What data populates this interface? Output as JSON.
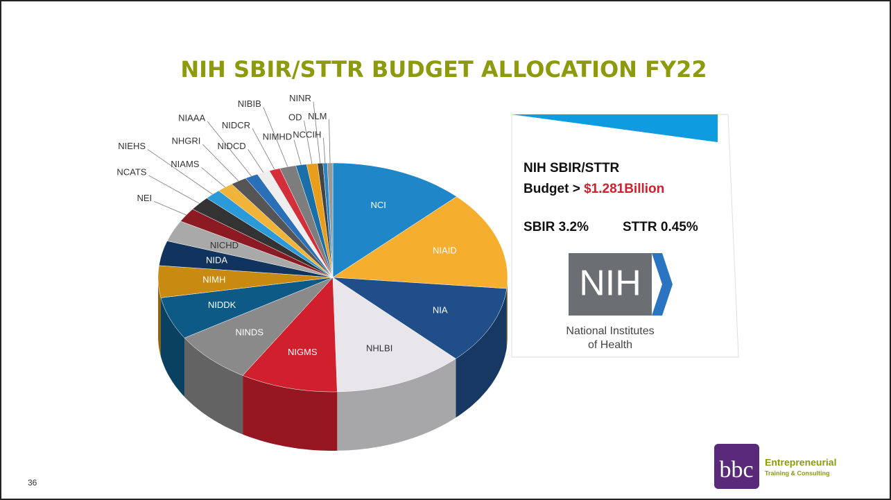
{
  "slide": {
    "title": "NIH SBIR/STTR BUDGET ALLOCATION FY22",
    "panel": {
      "line1": "NIH SBIR/STTR",
      "line2": "Budget > ",
      "amount": "$1.281Billion",
      "sbir": "SBIR 3.2%",
      "sttr": "STTR 0.45%",
      "logo": "NIH",
      "org1": "National Institutes",
      "org2": "of Health"
    },
    "page_number": "36",
    "brand": {
      "mark": "bbc",
      "name": "Entrepreneurial",
      "tagline": "Training & Consulting"
    }
  },
  "chart_data": {
    "type": "pie",
    "categories": [
      "NCI",
      "NIAID",
      "NIA",
      "NHLBI",
      "NIGMS",
      "NINDS",
      "NIDDK",
      "NIMH",
      "NIDA",
      "NICHD",
      "NEI",
      "NCATS",
      "NIEHS",
      "NIAMS",
      "NHGRI",
      "NIAAA",
      "NIDCD",
      "NIDCR",
      "NIBIB",
      "NIMHD",
      "OD",
      "NINR",
      "NCCIH",
      "NLM"
    ],
    "values": [
      12.5,
      14,
      11,
      12,
      9,
      7.5,
      6,
      4.5,
      3.5,
      3,
      2,
      2,
      1.5,
      1.5,
      1.5,
      1.2,
      1.2,
      1,
      1.5,
      1,
      1,
      0.5,
      0.4,
      0.5
    ],
    "colors": [
      "#1f86c8",
      "#f5ae2d",
      "#1f4e89",
      "#e8e6ea",
      "#d0202e",
      "#8a8a8a",
      "#0e5a86",
      "#c98a12",
      "#10345e",
      "#a9a9a9",
      "#8b1a22",
      "#333333",
      "#2a9ad8",
      "#f0b43a",
      "#555555",
      "#2a6fb8",
      "#eeeeee",
      "#d22f3a",
      "#7d7d7d",
      "#1a6fa8",
      "#e89e1a",
      "#444444",
      "#2a85c5",
      "#999999"
    ]
  }
}
